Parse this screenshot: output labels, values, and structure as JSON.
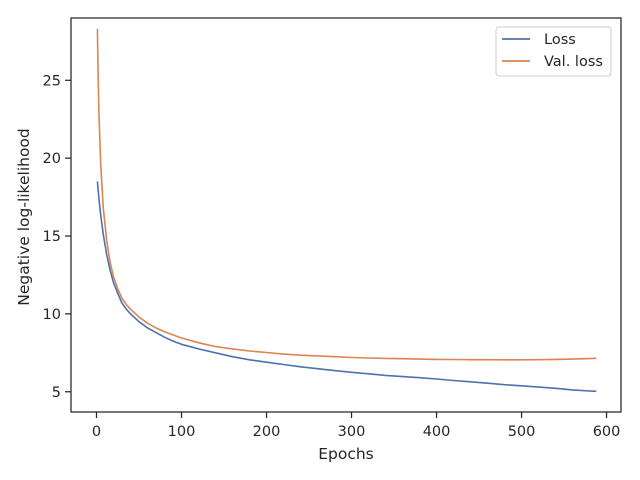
{
  "chart_data": {
    "type": "line",
    "xlabel": "Epochs",
    "ylabel": "Negative log-likelihood",
    "xlim": [
      -30,
      617
    ],
    "ylim": [
      3.7,
      29.0
    ],
    "xticks": [
      0,
      100,
      200,
      300,
      400,
      500,
      600
    ],
    "yticks": [
      5,
      10,
      15,
      20,
      25
    ],
    "legend_position": "top-right",
    "grid": false,
    "series": [
      {
        "name": "Loss",
        "color": "#4c72b0",
        "x": [
          1,
          3,
          5,
          8,
          12,
          16,
          20,
          25,
          30,
          35,
          40,
          50,
          60,
          70,
          80,
          90,
          100,
          120,
          140,
          160,
          180,
          200,
          220,
          240,
          260,
          280,
          300,
          320,
          340,
          360,
          380,
          400,
          420,
          440,
          460,
          480,
          500,
          520,
          540,
          560,
          580,
          588
        ],
        "y": [
          18.5,
          17.3,
          16.3,
          15.1,
          13.8,
          12.8,
          12.0,
          11.3,
          10.7,
          10.3,
          10.0,
          9.5,
          9.1,
          8.8,
          8.5,
          8.25,
          8.05,
          7.75,
          7.5,
          7.25,
          7.05,
          6.9,
          6.75,
          6.6,
          6.48,
          6.36,
          6.25,
          6.15,
          6.05,
          5.97,
          5.9,
          5.82,
          5.72,
          5.64,
          5.55,
          5.45,
          5.38,
          5.3,
          5.22,
          5.12,
          5.05,
          5.03
        ]
      },
      {
        "name": "Val. loss",
        "color": "#dd8452",
        "x": [
          1,
          2,
          3,
          5,
          8,
          12,
          16,
          20,
          25,
          30,
          35,
          40,
          50,
          60,
          70,
          80,
          90,
          100,
          120,
          140,
          160,
          180,
          200,
          220,
          240,
          260,
          280,
          300,
          320,
          340,
          360,
          380,
          400,
          420,
          440,
          460,
          480,
          500,
          520,
          540,
          560,
          580,
          588
        ],
        "y": [
          28.3,
          25.0,
          22.5,
          19.5,
          16.8,
          14.7,
          13.3,
          12.4,
          11.6,
          11.0,
          10.6,
          10.3,
          9.8,
          9.4,
          9.1,
          8.85,
          8.65,
          8.45,
          8.15,
          7.9,
          7.75,
          7.62,
          7.52,
          7.42,
          7.35,
          7.3,
          7.25,
          7.2,
          7.17,
          7.14,
          7.12,
          7.1,
          7.08,
          7.07,
          7.06,
          7.06,
          7.05,
          7.05,
          7.06,
          7.08,
          7.1,
          7.13,
          7.15
        ]
      }
    ]
  }
}
